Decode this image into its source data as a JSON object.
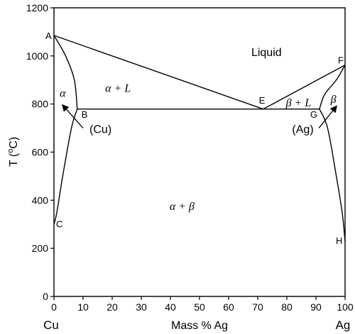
{
  "chart_data": {
    "type": "line",
    "xlabel": "Mass % Ag",
    "ylabel": "T (°C)",
    "ylabel_main": "T (",
    "ylabel_sup": "o",
    "ylabel_unit": "C)",
    "xlim": [
      0,
      100
    ],
    "ylim": [
      0,
      1200
    ],
    "x_ticks": [
      0,
      10,
      20,
      30,
      40,
      50,
      60,
      70,
      80,
      90,
      100
    ],
    "y_ticks": [
      0,
      200,
      400,
      600,
      800,
      1000,
      1200
    ],
    "grid": false,
    "left_end_label": "Cu",
    "right_end_label": "Ag",
    "points": [
      {
        "name": "A",
        "x": 0,
        "y": 1085
      },
      {
        "name": "B",
        "x": 8,
        "y": 779
      },
      {
        "name": "C",
        "x": 0,
        "y": 300
      },
      {
        "name": "E",
        "x": 71.9,
        "y": 779
      },
      {
        "name": "F",
        "x": 100,
        "y": 962
      },
      {
        "name": "G",
        "x": 91.2,
        "y": 779
      },
      {
        "name": "H",
        "x": 100,
        "y": 230
      }
    ],
    "series": [
      {
        "values": [
          [
            0,
            1085
          ],
          [
            71.9,
            779
          ]
        ]
      },
      {
        "values": [
          [
            71.9,
            779
          ],
          [
            100,
            962
          ]
        ]
      },
      {
        "values": [
          [
            8,
            779
          ],
          [
            91.2,
            779
          ]
        ]
      },
      {
        "values": [
          [
            0,
            1085
          ],
          [
            4,
            1000
          ],
          [
            7,
            900
          ],
          [
            8,
            779
          ]
        ]
      },
      {
        "values": [
          [
            8,
            779
          ],
          [
            6,
            700
          ],
          [
            3,
            500
          ],
          [
            1,
            350
          ],
          [
            0,
            300
          ]
        ]
      },
      {
        "values": [
          [
            100,
            962
          ],
          [
            97,
            900
          ],
          [
            93,
            840
          ],
          [
            91.2,
            779
          ]
        ]
      },
      {
        "values": [
          [
            91.2,
            779
          ],
          [
            94,
            700
          ],
          [
            97,
            500
          ],
          [
            99,
            350
          ],
          [
            100,
            230
          ]
        ]
      }
    ],
    "phase_regions": [
      {
        "label": "Liquid",
        "x": 73,
        "y": 1000,
        "style": "sans"
      },
      {
        "label": "α + L",
        "x": 22,
        "y": 850,
        "style": "italic"
      },
      {
        "label": "α",
        "x": 3,
        "y": 830,
        "style": "italic"
      },
      {
        "label": "β + L",
        "x": 84,
        "y": 790,
        "style": "italic"
      },
      {
        "label": "β",
        "x": 96,
        "y": 805,
        "style": "italic"
      },
      {
        "label": "α + β",
        "x": 44,
        "y": 360,
        "style": "italic"
      }
    ],
    "annotations": [
      {
        "label": "(Cu)",
        "label_x": 16,
        "label_y": 680,
        "arrow_from": [
          10,
          700
        ],
        "arrow_to": [
          3,
          795
        ]
      },
      {
        "label": "(Ag)",
        "label_x": 85.5,
        "label_y": 680,
        "arrow_from": [
          91,
          700
        ],
        "arrow_to": [
          97,
          790
        ]
      }
    ]
  }
}
